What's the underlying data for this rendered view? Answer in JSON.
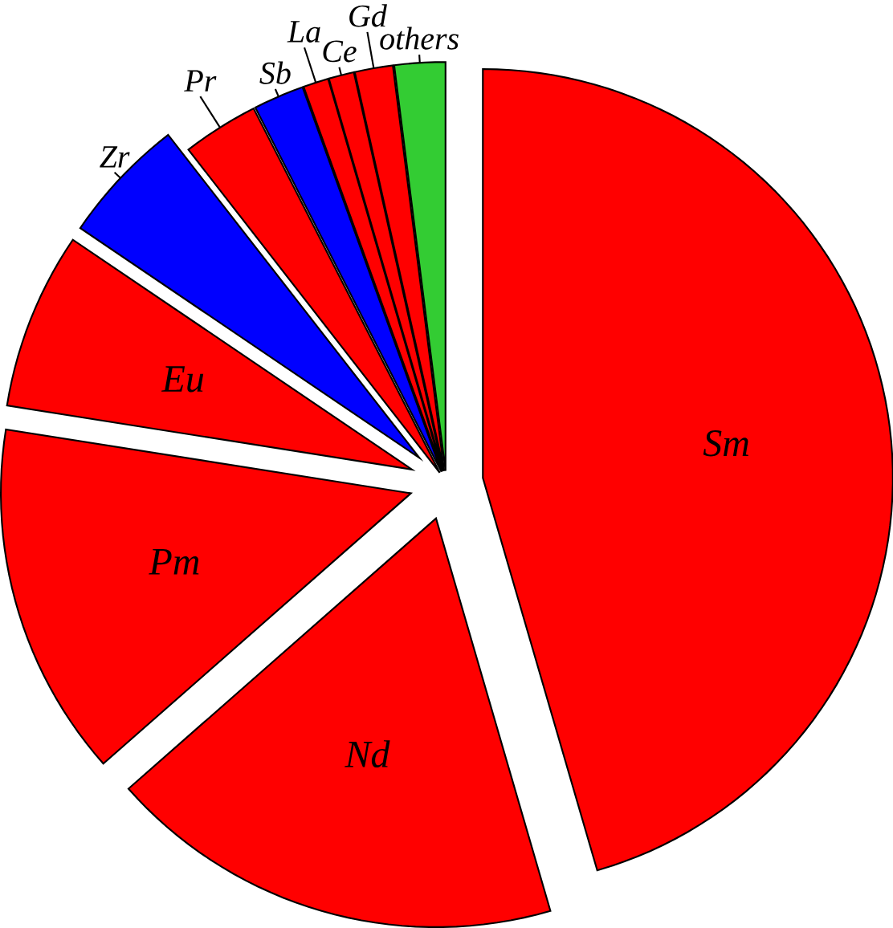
{
  "chart_data": {
    "type": "pie",
    "categories": [
      "Sm",
      "Nd",
      "Pm",
      "Eu",
      "Zr",
      "Pr",
      "Sb",
      "La",
      "Ce",
      "Gd",
      "others"
    ],
    "values": [
      45.5,
      18,
      14,
      7,
      5,
      3,
      2,
      1,
      1,
      1.5,
      2
    ],
    "colors": [
      "#ff0000",
      "#ff0000",
      "#ff0000",
      "#ff0000",
      "#0000ff",
      "#ff0000",
      "#0000ff",
      "#ff0000",
      "#ff0000",
      "#ff0000",
      "#33cc33"
    ]
  }
}
